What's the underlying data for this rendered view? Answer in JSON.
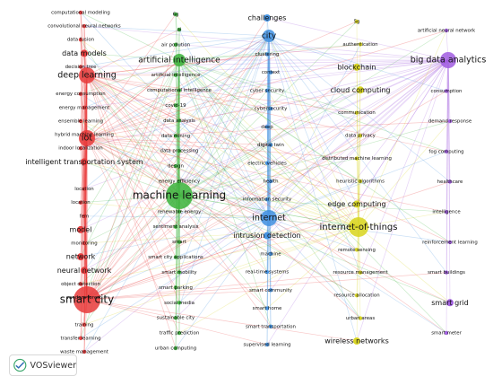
{
  "app": {
    "logo_text": "VOSviewer"
  },
  "colors": {
    "red": "#e8393a",
    "green": "#3bb33b",
    "blue": "#3f8fe0",
    "yellow": "#d8d51c",
    "purple": "#a05ce0"
  },
  "chart_data": {
    "type": "network",
    "clusters": [
      {
        "name": "red",
        "nodes": [
          {
            "label": "computational modeling",
            "weight": 1
          },
          {
            "label": "convolutional neural networks",
            "weight": 1
          },
          {
            "label": "data fusion",
            "weight": 1
          },
          {
            "label": "data models",
            "weight": 2
          },
          {
            "label": "decision tree",
            "weight": 1
          },
          {
            "label": "deep learning",
            "weight": 4
          },
          {
            "label": "energy consumption",
            "weight": 1
          },
          {
            "label": "energy management",
            "weight": 1
          },
          {
            "label": "ensemble learning",
            "weight": 1
          },
          {
            "label": "hybrid machine learning",
            "weight": 1
          },
          {
            "label": "indoor localization",
            "weight": 1
          },
          {
            "label": "intelligent transportation system",
            "weight": 2
          },
          {
            "label": "iot",
            "weight": 4
          },
          {
            "label": "location",
            "weight": 1
          },
          {
            "label": "location",
            "weight": 1
          },
          {
            "label": "fem",
            "weight": 1
          },
          {
            "label": "model",
            "weight": 2
          },
          {
            "label": "monitoring",
            "weight": 1
          },
          {
            "label": "network",
            "weight": 2
          },
          {
            "label": "neural network",
            "weight": 2
          },
          {
            "label": "object detection",
            "weight": 1
          },
          {
            "label": "random forest",
            "weight": 1
          },
          {
            "label": "smart city",
            "weight": 6
          },
          {
            "label": "training",
            "weight": 1
          },
          {
            "label": "transfer learning",
            "weight": 1
          },
          {
            "label": "waste management",
            "weight": 1
          }
        ]
      },
      {
        "name": "green",
        "nodes": [
          {
            "label": "6g",
            "weight": 1
          },
          {
            "label": "ai",
            "weight": 1
          },
          {
            "label": "air pollution",
            "weight": 1
          },
          {
            "label": "artificial intelligence",
            "weight": 3
          },
          {
            "label": "artificial intelligence",
            "weight": 1
          },
          {
            "label": "computational intelligence",
            "weight": 1
          },
          {
            "label": "covid-19",
            "weight": 1
          },
          {
            "label": "data analysis",
            "weight": 1
          },
          {
            "label": "data mining",
            "weight": 1
          },
          {
            "label": "data processing",
            "weight": 1
          },
          {
            "label": "design",
            "weight": 1
          },
          {
            "label": "energy efficiency",
            "weight": 1
          },
          {
            "label": "machine learning",
            "weight": 6
          },
          {
            "label": "renewable energy",
            "weight": 1
          },
          {
            "label": "sentiment analysis",
            "weight": 1
          },
          {
            "label": "smart",
            "weight": 1
          },
          {
            "label": "smart city applications",
            "weight": 1
          },
          {
            "label": "smart mobility",
            "weight": 1
          },
          {
            "label": "smart parking",
            "weight": 1
          },
          {
            "label": "social media",
            "weight": 1
          },
          {
            "label": "sustainable city",
            "weight": 1
          },
          {
            "label": "traffic prediction",
            "weight": 1
          },
          {
            "label": "urban computing",
            "weight": 1
          }
        ]
      },
      {
        "name": "blue",
        "nodes": [
          {
            "label": "challenges",
            "weight": 2
          },
          {
            "label": "city",
            "weight": 3
          },
          {
            "label": "clustering",
            "weight": 1
          },
          {
            "label": "context",
            "weight": 1
          },
          {
            "label": "cyber security",
            "weight": 1
          },
          {
            "label": "cybersecurity",
            "weight": 1
          },
          {
            "label": "deep",
            "weight": 1
          },
          {
            "label": "digital twin",
            "weight": 1
          },
          {
            "label": "electric vehicles",
            "weight": 1
          },
          {
            "label": "health",
            "weight": 1
          },
          {
            "label": "information security",
            "weight": 1
          },
          {
            "label": "internet",
            "weight": 4
          },
          {
            "label": "intrusion detection",
            "weight": 2
          },
          {
            "label": "machine",
            "weight": 1
          },
          {
            "label": "real-time systems",
            "weight": 1
          },
          {
            "label": "smart community",
            "weight": 1
          },
          {
            "label": "smart home",
            "weight": 1
          },
          {
            "label": "smart transportation",
            "weight": 1
          },
          {
            "label": "supervised learning",
            "weight": 1
          }
        ]
      },
      {
        "name": "yellow",
        "nodes": [
          {
            "label": "5g",
            "weight": 1
          },
          {
            "label": "authentication",
            "weight": 1
          },
          {
            "label": "blockchain",
            "weight": 2
          },
          {
            "label": "cloud computing",
            "weight": 2
          },
          {
            "label": "communication",
            "weight": 1
          },
          {
            "label": "data privacy",
            "weight": 1
          },
          {
            "label": "distributed machine learning",
            "weight": 1
          },
          {
            "label": "heuristic algorithms",
            "weight": 1
          },
          {
            "label": "edge computing",
            "weight": 2
          },
          {
            "label": "internet-of-things",
            "weight": 5
          },
          {
            "label": "remote sensing",
            "weight": 1
          },
          {
            "label": "resource management",
            "weight": 1
          },
          {
            "label": "resource allocation",
            "weight": 1
          },
          {
            "label": "urban areas",
            "weight": 1
          },
          {
            "label": "wireless networks",
            "weight": 2
          }
        ]
      },
      {
        "name": "purple",
        "nodes": [
          {
            "label": "artificial neural network",
            "weight": 1
          },
          {
            "label": "big data analytics",
            "weight": 4
          },
          {
            "label": "consumption",
            "weight": 1
          },
          {
            "label": "demand response",
            "weight": 1
          },
          {
            "label": "fog computing",
            "weight": 1
          },
          {
            "label": "healthcare",
            "weight": 1
          },
          {
            "label": "intelligence",
            "weight": 1
          },
          {
            "label": "reinforcement learning",
            "weight": 1
          },
          {
            "label": "smart buildings",
            "weight": 1
          },
          {
            "label": "smart grid",
            "weight": 2
          },
          {
            "label": "smart meter",
            "weight": 1
          }
        ]
      }
    ]
  }
}
